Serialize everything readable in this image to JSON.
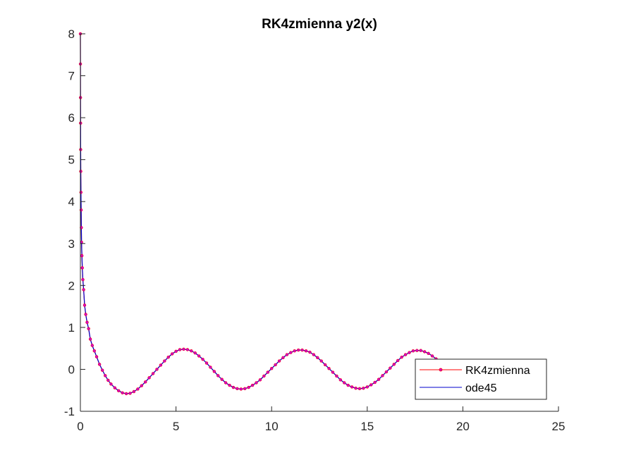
{
  "chart_data": {
    "type": "line",
    "title": "RK4zmienna y2(x)",
    "xlabel": "",
    "ylabel": "",
    "xlim": [
      0,
      25
    ],
    "ylim": [
      -1,
      8
    ],
    "xticks": [
      0,
      5,
      10,
      15,
      20,
      25
    ],
    "yticks": [
      -1,
      0,
      1,
      2,
      3,
      4,
      5,
      6,
      7,
      8
    ],
    "grid": false,
    "legend_position": "bottom-right",
    "colors": {
      "rk4": "#ff0000",
      "ode45": "#0000cc",
      "marker": "#cc00cc"
    },
    "series": [
      {
        "name": "RK4zmienna",
        "style": "line-with-point-markers",
        "x": [
          0,
          0.003,
          0.006,
          0.01,
          0.015,
          0.02,
          0.03,
          0.04,
          0.05,
          0.06,
          0.08,
          0.1,
          0.13,
          0.17,
          0.22,
          0.28,
          0.35,
          0.43,
          0.52,
          0.62,
          0.73,
          0.85,
          1.0,
          1.15,
          1.3,
          1.45,
          1.6,
          1.8,
          2.0,
          2.2,
          2.4,
          2.6,
          2.8,
          3.0,
          3.2,
          3.4,
          3.6,
          3.8,
          4.0,
          4.2,
          4.4,
          4.6,
          4.8,
          5.0,
          5.2,
          5.4,
          5.6,
          5.8,
          6.0,
          6.2,
          6.4,
          6.6,
          6.8,
          7.0,
          7.2,
          7.4,
          7.6,
          7.8,
          8.0,
          8.2,
          8.4,
          8.6,
          8.8,
          9.0,
          9.2,
          9.4,
          9.6,
          9.8,
          10.0,
          10.2,
          10.4,
          10.6,
          10.8,
          11.0,
          11.2,
          11.4,
          11.6,
          11.8,
          12.0,
          12.2,
          12.4,
          12.6,
          12.8,
          13.0,
          13.2,
          13.4,
          13.6,
          13.8,
          14.0,
          14.2,
          14.4,
          14.6,
          14.8,
          15.0,
          15.2,
          15.4,
          15.6,
          15.8,
          16.0,
          16.2,
          16.4,
          16.6,
          16.8,
          17.0,
          17.2,
          17.4,
          17.6,
          17.8,
          18.0,
          18.2,
          18.4,
          18.6,
          18.8,
          19.0
        ],
        "y": [
          8.0,
          7.28,
          6.48,
          5.87,
          5.24,
          4.72,
          4.22,
          3.8,
          3.38,
          3.03,
          2.71,
          2.42,
          2.14,
          1.9,
          1.53,
          1.31,
          1.12,
          0.97,
          0.72,
          0.57,
          0.44,
          0.3,
          0.12,
          -0.02,
          -0.15,
          -0.26,
          -0.35,
          -0.44,
          -0.51,
          -0.56,
          -0.58,
          -0.57,
          -0.53,
          -0.47,
          -0.39,
          -0.3,
          -0.2,
          -0.1,
          0.0,
          0.1,
          0.2,
          0.29,
          0.37,
          0.43,
          0.47,
          0.48,
          0.47,
          0.44,
          0.39,
          0.32,
          0.24,
          0.15,
          0.05,
          -0.05,
          -0.15,
          -0.24,
          -0.32,
          -0.38,
          -0.43,
          -0.46,
          -0.47,
          -0.46,
          -0.43,
          -0.38,
          -0.32,
          -0.25,
          -0.16,
          -0.07,
          0.02,
          0.11,
          0.2,
          0.28,
          0.35,
          0.4,
          0.44,
          0.46,
          0.46,
          0.44,
          0.41,
          0.35,
          0.28,
          0.2,
          0.11,
          0.02,
          -0.07,
          -0.16,
          -0.25,
          -0.32,
          -0.38,
          -0.42,
          -0.45,
          -0.46,
          -0.45,
          -0.42,
          -0.37,
          -0.31,
          -0.24,
          -0.15,
          -0.06,
          0.03,
          0.12,
          0.21,
          0.29,
          0.35,
          0.4,
          0.44,
          0.45,
          0.45,
          0.42,
          0.38,
          0.32,
          0.25,
          0.17,
          0.07
        ]
      },
      {
        "name": "ode45",
        "style": "line",
        "x": [
          0,
          0.003,
          0.006,
          0.01,
          0.015,
          0.02,
          0.03,
          0.04,
          0.05,
          0.06,
          0.08,
          0.1,
          0.13,
          0.17,
          0.22,
          0.28,
          0.35,
          0.43,
          0.52,
          0.62,
          0.73,
          0.85,
          1.0,
          1.15,
          1.3,
          1.45,
          1.6,
          1.8,
          2.0,
          2.2,
          2.4,
          2.6,
          2.8,
          3.0,
          3.2,
          3.4,
          3.6,
          3.8,
          4.0,
          4.2,
          4.4,
          4.6,
          4.8,
          5.0,
          5.2,
          5.4,
          5.6,
          5.8,
          6.0,
          6.2,
          6.4,
          6.6,
          6.8,
          7.0,
          7.2,
          7.4,
          7.6,
          7.8,
          8.0,
          8.2,
          8.4,
          8.6,
          8.8,
          9.0,
          9.2,
          9.4,
          9.6,
          9.8,
          10.0,
          10.2,
          10.4,
          10.6,
          10.8,
          11.0,
          11.2,
          11.4,
          11.6,
          11.8,
          12.0,
          12.2,
          12.4,
          12.6,
          12.8,
          13.0,
          13.2,
          13.4,
          13.6,
          13.8,
          14.0,
          14.2,
          14.4,
          14.6,
          14.8,
          15.0,
          15.2,
          15.4,
          15.6,
          15.8,
          16.0,
          16.2,
          16.4,
          16.6,
          16.8,
          17.0,
          17.2,
          17.4,
          17.6,
          17.8,
          18.0,
          18.2,
          18.4,
          18.6,
          18.8,
          19.0
        ],
        "y": [
          8.0,
          7.28,
          6.48,
          5.87,
          5.24,
          4.72,
          4.22,
          3.8,
          3.38,
          3.03,
          2.71,
          2.42,
          2.14,
          1.9,
          1.53,
          1.31,
          1.12,
          0.97,
          0.72,
          0.57,
          0.44,
          0.3,
          0.12,
          -0.02,
          -0.15,
          -0.26,
          -0.35,
          -0.44,
          -0.51,
          -0.56,
          -0.58,
          -0.57,
          -0.53,
          -0.47,
          -0.39,
          -0.3,
          -0.2,
          -0.1,
          0.0,
          0.1,
          0.2,
          0.29,
          0.37,
          0.43,
          0.47,
          0.48,
          0.47,
          0.44,
          0.39,
          0.32,
          0.24,
          0.15,
          0.05,
          -0.05,
          -0.15,
          -0.24,
          -0.32,
          -0.38,
          -0.43,
          -0.46,
          -0.47,
          -0.46,
          -0.43,
          -0.38,
          -0.32,
          -0.25,
          -0.16,
          -0.07,
          0.02,
          0.11,
          0.2,
          0.28,
          0.35,
          0.4,
          0.44,
          0.46,
          0.46,
          0.44,
          0.41,
          0.35,
          0.28,
          0.2,
          0.11,
          0.02,
          -0.07,
          -0.16,
          -0.25,
          -0.32,
          -0.38,
          -0.42,
          -0.45,
          -0.46,
          -0.45,
          -0.42,
          -0.37,
          -0.31,
          -0.24,
          -0.15,
          -0.06,
          0.03,
          0.12,
          0.21,
          0.29,
          0.35,
          0.4,
          0.44,
          0.45,
          0.45,
          0.42,
          0.38,
          0.32,
          0.25,
          0.17,
          0.07
        ]
      }
    ]
  }
}
